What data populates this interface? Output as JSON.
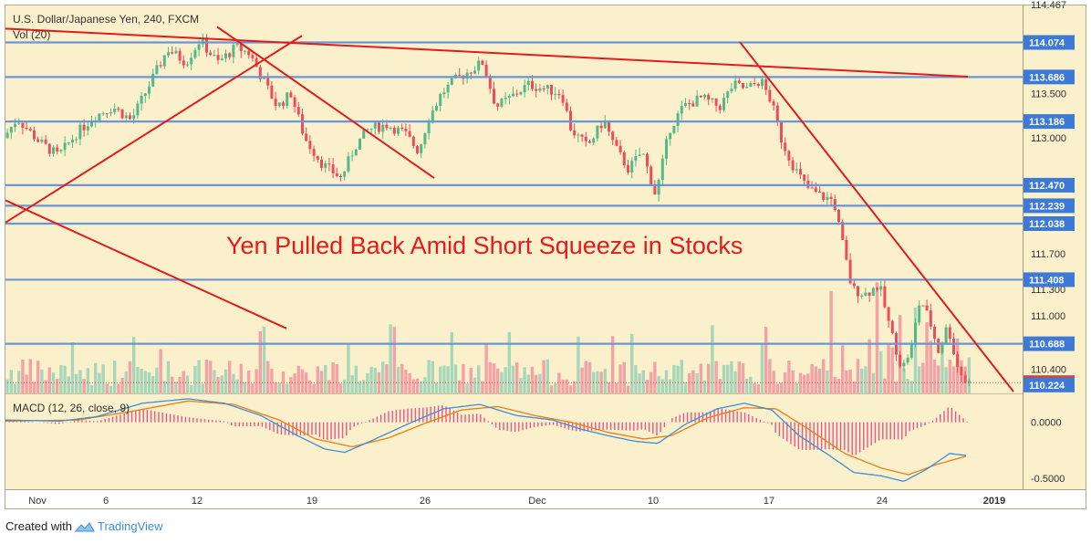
{
  "chart_data": {
    "type": "candlestick",
    "title": "U.S. Dollar/Japanese Yen, 240, FXCM",
    "volume_label": "Vol (20)",
    "macd_label": "MACD (12, 26, close, 9)",
    "annotation": "Yen Pulled Back Amid Short Squeeze in Stocks",
    "price_ylim": [
      110.13,
      114.5
    ],
    "macd_ylim": [
      -0.6,
      0.25
    ],
    "price_ticks": [
      110.4,
      111.0,
      111.3,
      111.7,
      113.0,
      113.5
    ],
    "top_partial_tick": "114.467",
    "macd_ticks": [
      {
        "value": 0.0,
        "label": "0.0000"
      },
      {
        "value": -0.5,
        "label": "-0.5000"
      }
    ],
    "x_ticks": [
      "Nov",
      "6",
      "12",
      "19",
      "26",
      "Dec",
      "10",
      "17",
      "24",
      "2019"
    ],
    "horizontal_levels": [
      {
        "price": 114.074,
        "label": "114.074"
      },
      {
        "price": 113.686,
        "label": "113.686"
      },
      {
        "price": 113.186,
        "label": "113.186"
      },
      {
        "price": 112.47,
        "label": "112.470"
      },
      {
        "price": 112.239,
        "label": "112.239"
      },
      {
        "price": 112.038,
        "label": "112.038"
      },
      {
        "price": 111.408,
        "label": "111.408"
      },
      {
        "price": 110.688,
        "label": "110.688"
      }
    ],
    "current_price": {
      "value": 110.251,
      "label": "110.251"
    },
    "volume_scale_tick": {
      "value": 110.224,
      "label": "110.224"
    },
    "trendlines": [
      {
        "from": [
          0,
          114.23
        ],
        "to": [
          1055,
          113.69
        ]
      },
      {
        "from": [
          0,
          112.05
        ],
        "to": [
          325,
          114.15
        ]
      },
      {
        "from": [
          232,
          114.25
        ],
        "to": [
          470,
          112.55
        ]
      },
      {
        "from": [
          0,
          112.3
        ],
        "to": [
          308,
          110.86
        ]
      },
      {
        "from": [
          805,
          114.08
        ],
        "to": [
          1105,
          110.15
        ]
      }
    ],
    "price_anchors": [
      [
        0,
        113.0
      ],
      [
        15,
        113.22
      ],
      [
        40,
        112.95
      ],
      [
        60,
        112.8
      ],
      [
        80,
        113.05
      ],
      [
        100,
        113.25
      ],
      [
        120,
        113.35
      ],
      [
        140,
        113.2
      ],
      [
        160,
        113.6
      ],
      [
        180,
        114.0
      ],
      [
        200,
        113.85
      ],
      [
        215,
        114.1
      ],
      [
        235,
        113.85
      ],
      [
        255,
        114.02
      ],
      [
        270,
        113.95
      ],
      [
        282,
        113.7
      ],
      [
        300,
        113.35
      ],
      [
        315,
        113.5
      ],
      [
        330,
        113.0
      ],
      [
        350,
        112.7
      ],
      [
        370,
        112.55
      ],
      [
        385,
        112.9
      ],
      [
        400,
        113.1
      ],
      [
        420,
        113.15
      ],
      [
        440,
        113.05
      ],
      [
        455,
        112.85
      ],
      [
        465,
        113.2
      ],
      [
        480,
        113.5
      ],
      [
        495,
        113.65
      ],
      [
        510,
        113.75
      ],
      [
        525,
        113.85
      ],
      [
        540,
        113.35
      ],
      [
        555,
        113.45
      ],
      [
        575,
        113.6
      ],
      [
        595,
        113.55
      ],
      [
        612,
        113.5
      ],
      [
        622,
        113.1
      ],
      [
        640,
        112.9
      ],
      [
        658,
        113.2
      ],
      [
        670,
        112.9
      ],
      [
        685,
        112.65
      ],
      [
        700,
        112.85
      ],
      [
        715,
        112.35
      ],
      [
        730,
        113.1
      ],
      [
        745,
        113.35
      ],
      [
        765,
        113.45
      ],
      [
        785,
        113.35
      ],
      [
        800,
        113.6
      ],
      [
        815,
        113.55
      ],
      [
        830,
        113.65
      ],
      [
        842,
        113.4
      ],
      [
        852,
        113.0
      ],
      [
        865,
        112.7
      ],
      [
        880,
        112.45
      ],
      [
        895,
        112.35
      ],
      [
        910,
        112.3
      ],
      [
        920,
        111.8
      ],
      [
        930,
        111.3
      ],
      [
        945,
        111.25
      ],
      [
        960,
        111.35
      ],
      [
        972,
        110.85
      ],
      [
        985,
        110.4
      ],
      [
        995,
        110.65
      ],
      [
        1005,
        111.2
      ],
      [
        1015,
        110.95
      ],
      [
        1025,
        110.6
      ],
      [
        1035,
        110.9
      ],
      [
        1045,
        110.45
      ],
      [
        1055,
        110.25
      ]
    ],
    "macd_anchors": [
      [
        0,
        0.02
      ],
      [
        60,
        0.01
      ],
      [
        100,
        0.05
      ],
      [
        150,
        0.17
      ],
      [
        200,
        0.21
      ],
      [
        240,
        0.17
      ],
      [
        280,
        0.06
      ],
      [
        320,
        -0.12
      ],
      [
        350,
        -0.24
      ],
      [
        372,
        -0.27
      ],
      [
        400,
        -0.17
      ],
      [
        440,
        -0.02
      ],
      [
        480,
        0.12
      ],
      [
        520,
        0.16
      ],
      [
        560,
        0.06
      ],
      [
        600,
        0.02
      ],
      [
        630,
        -0.06
      ],
      [
        660,
        -0.12
      ],
      [
        690,
        -0.17
      ],
      [
        715,
        -0.19
      ],
      [
        745,
        -0.02
      ],
      [
        780,
        0.12
      ],
      [
        810,
        0.17
      ],
      [
        840,
        0.11
      ],
      [
        870,
        -0.12
      ],
      [
        900,
        -0.28
      ],
      [
        930,
        -0.45
      ],
      [
        960,
        -0.48
      ],
      [
        985,
        -0.53
      ],
      [
        1010,
        -0.42
      ],
      [
        1035,
        -0.28
      ],
      [
        1055,
        -0.3
      ]
    ],
    "signal_anchors": [
      [
        0,
        0.01
      ],
      [
        80,
        0.02
      ],
      [
        140,
        0.1
      ],
      [
        200,
        0.19
      ],
      [
        250,
        0.16
      ],
      [
        300,
        0.02
      ],
      [
        340,
        -0.15
      ],
      [
        380,
        -0.22
      ],
      [
        420,
        -0.14
      ],
      [
        460,
        -0.01
      ],
      [
        500,
        0.11
      ],
      [
        540,
        0.14
      ],
      [
        580,
        0.06
      ],
      [
        620,
        0.0
      ],
      [
        660,
        -0.09
      ],
      [
        700,
        -0.15
      ],
      [
        730,
        -0.12
      ],
      [
        770,
        0.04
      ],
      [
        810,
        0.13
      ],
      [
        845,
        0.12
      ],
      [
        880,
        -0.06
      ],
      [
        920,
        -0.28
      ],
      [
        960,
        -0.41
      ],
      [
        990,
        -0.47
      ],
      [
        1020,
        -0.38
      ],
      [
        1055,
        -0.3
      ]
    ],
    "colors": {
      "background": "#fbf0cc",
      "up": "#53b987",
      "down": "#eb4d5c",
      "volume_up": "#a7d7b8",
      "volume_down": "#f3a3a5",
      "level_line": "#6a96d8",
      "level_label_bg": "#3d7ad8",
      "trendline": "#e21c1c",
      "annotation": "#e21c1c",
      "price_label_bg": "#d0453f",
      "macd_line": "#3d8fd8",
      "signal_line": "#f07c10",
      "histogram": "#e05a8a"
    }
  },
  "footer": {
    "prefix": "Created with",
    "brand": "TradingView"
  }
}
